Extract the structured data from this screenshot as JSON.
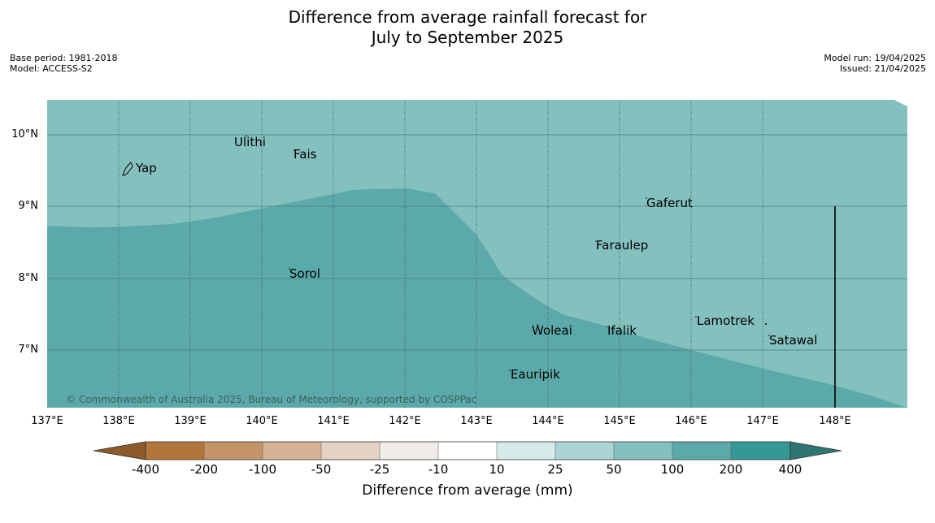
{
  "title_line1": "Difference from average rainfall forecast for",
  "title_line2": "July to September 2025",
  "meta": {
    "base_period": "Base period: 1981-2018",
    "model": "Model: ACCESS-S2",
    "model_run": "Model run: 19/04/2025",
    "issued": "Issued: 21/04/2025"
  },
  "latitude_labels": [
    "10°N",
    "9°N",
    "8°N",
    "7°N"
  ],
  "longitude_labels": [
    "137°E",
    "138°E",
    "139°E",
    "140°E",
    "141°E",
    "142°E",
    "143°E",
    "144°E",
    "145°E",
    "146°E",
    "147°E",
    "148°E"
  ],
  "places": {
    "yap": "Yap",
    "ulithi": "Ulithi",
    "fais": "Fais",
    "gaferut": "Gaferut",
    "faraulep": "Faraulep",
    "sorol": "Sorol",
    "lamotrek": "Lamotrek",
    "woleai": "Woleai",
    "ifalik": "Ifalik",
    "satawal": "Satawal",
    "eauripik": "Eauripik"
  },
  "copyright": "© Commonwealth of Australia 2025, Bureau of Meteorology, supported by COSPPac",
  "colorbar": {
    "title": "Difference from average (mm)",
    "labels": [
      "-400",
      "-200",
      "-100",
      "-50",
      "-25",
      "-10",
      "10",
      "25",
      "50",
      "100",
      "200",
      "400"
    ],
    "colors": {
      "lt_400": "#8c5a2b",
      "n400_n200": "#b2763d",
      "n200_n100": "#c39468",
      "n100_n50": "#d6b394",
      "n50_n25": "#e6d2c2",
      "n25_n10": "#f0ece7",
      "n10_10": "#ffffff",
      "p10_25": "#d5eae9",
      "p25_50": "#abd5d4",
      "p50_100": "#84c0be",
      "p100_200": "#5baaa9",
      "p200_400": "#349996",
      "gt_400": "#2f7571"
    }
  },
  "map_colors": {
    "p50_100": "#84c0be",
    "p100_200": "#5baaa9"
  }
}
